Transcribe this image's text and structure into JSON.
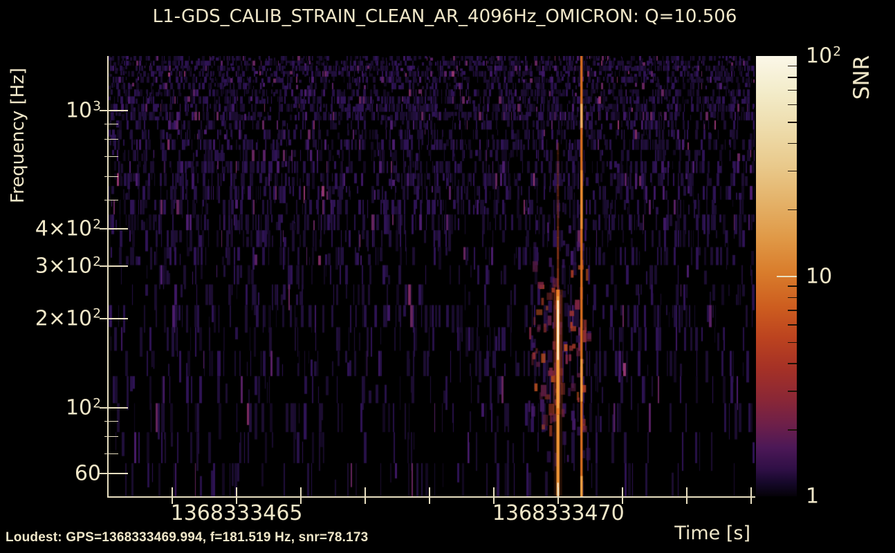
{
  "figure": {
    "title": "L1-GDS_CALIB_STRAIN_CLEAN_AR_4096Hz_OMICRON: Q=10.506",
    "footer_note": "Loudest: GPS=1368333469.994, f=181.519 Hz, snr=78.173"
  },
  "style": {
    "background": "#000000",
    "text": "#f0e7c9",
    "axis": "#e9e0c1",
    "colorbar_minor_tick": "#1c1207"
  },
  "chart_data": {
    "type": "heatmap",
    "title": "L1-GDS_CALIB_STRAIN_CLEAN_AR_4096Hz_OMICRON: Q=10.506",
    "xlabel": "Time [s]",
    "ylabel": "Frequency [Hz]",
    "x_axis": {
      "scale": "linear",
      "range_gps": [
        1368333463.0,
        1368333473.05
      ],
      "major_ticks": [
        {
          "value": 1368333465,
          "label": "1368333465"
        },
        {
          "value": 1368333470,
          "label": "1368333470"
        }
      ],
      "minor_ticks": [
        1368333464,
        1368333465,
        1368333466,
        1368333467,
        1368333468,
        1368333469,
        1368333470,
        1368333471,
        1368333472,
        1368333473
      ]
    },
    "y_axis": {
      "scale": "log",
      "range_hz": [
        50.4,
        1527
      ],
      "major_ticks": [
        {
          "value": 1000,
          "base": "10",
          "exp": "3"
        },
        {
          "value": 400,
          "base": "4×10",
          "exp": "2"
        },
        {
          "value": 300,
          "base": "3×10",
          "exp": "2"
        },
        {
          "value": 200,
          "base": "2×10",
          "exp": "2"
        },
        {
          "value": 100,
          "base": "10",
          "exp": "2"
        },
        {
          "value": 60,
          "base": "60"
        }
      ],
      "minor_ticks": [
        900,
        800,
        700,
        600,
        500,
        90,
        80,
        70
      ]
    },
    "colorbar": {
      "label": "SNR",
      "scale": "log",
      "range": [
        1,
        100
      ],
      "major_ticks": [
        {
          "value": 100,
          "base": "10",
          "exp": "2"
        },
        {
          "value": 10,
          "base": "10"
        },
        {
          "value": 1,
          "base": "1"
        }
      ],
      "minor_ticks": [
        90,
        80,
        70,
        60,
        50,
        40,
        30,
        20,
        9,
        8,
        7,
        6,
        5,
        4,
        3,
        2
      ],
      "gradient_top_to_bottom": [
        [
          "#fbf7e8",
          0.0
        ],
        [
          "#f3ecca",
          0.08
        ],
        [
          "#eeddad",
          0.16
        ],
        [
          "#e9c98b",
          0.25
        ],
        [
          "#e4b269",
          0.33
        ],
        [
          "#e09a48",
          0.41
        ],
        [
          "#d97d2c",
          0.49
        ],
        [
          "#cd5d1f",
          0.57
        ],
        [
          "#bc431f",
          0.64
        ],
        [
          "#a53126",
          0.71
        ],
        [
          "#8a2736",
          0.78
        ],
        [
          "#6c1f4a",
          0.84
        ],
        [
          "#4c1857",
          0.89
        ],
        [
          "#2e0f45",
          0.94
        ],
        [
          "#150829",
          0.97
        ],
        [
          "#050208",
          1.0
        ]
      ]
    },
    "loudest": {
      "gps": 1368333469.994,
      "f_hz": 181.519,
      "snr": 78.173
    },
    "events": {
      "loudest_line": {
        "gps": 1368333469.994,
        "f_range": [
          50.4,
          780
        ],
        "upper_color": "#94381a",
        "bright": {
          "f": [
            95,
            250
          ],
          "color": "#e87c28",
          "inner_color": "#f4a244"
        },
        "strand_color": "#8c2c20",
        "white_core": {
          "f": [
            145,
            230
          ],
          "color": "#fdf2d4",
          "hot_color": "#fffdf4"
        },
        "lower_bright": {
          "f": [
            50.4,
            95
          ],
          "color": "#ef9536"
        },
        "bottom_white": {
          "f": [
            50.4,
            56
          ],
          "color": "#fff7e0"
        },
        "halo_color": "#a84418"
      },
      "secondary_line": {
        "gps": 1368333470.36,
        "f_range": [
          50.4,
          1527
        ],
        "color": "#d66d1e",
        "bright_segments": [
          {
            "f": [
              875,
              1054
            ],
            "color": "#f2b060"
          },
          {
            "f": [
              400,
              630
            ],
            "color": "#ea8c30"
          },
          {
            "f": [
              105,
              146
            ],
            "color": "#f09a40"
          },
          {
            "f": [
              50.4,
              59
            ],
            "color": "#f1a246"
          }
        ]
      },
      "blob": {
        "t": [
          1368333469.55,
          1368333470.45
        ],
        "f": [
          85,
          330
        ],
        "warm_count": 70,
        "purple_count": 55,
        "warm_colors": [
          "#5e1d42",
          "#7c2440",
          "#943032",
          "#a83b26",
          "#bc4f1f"
        ],
        "purple_colors": [
          "#2e1350",
          "#3a1760",
          "#471b6a"
        ]
      }
    },
    "noise": {
      "seed": 1337,
      "rows": 30,
      "growth": 1.07,
      "density_top": 0.8,
      "density_bottom": 0.18,
      "palette": [
        "#120821",
        "#190c2e",
        "#200f3b",
        "#271148",
        "#2e1354",
        "#1c0d31"
      ],
      "accents": [
        "#3d1763",
        "#4a1c6b",
        "#571f63",
        "#64245c"
      ],
      "pinks": [
        "#7b2a60",
        "#90356e"
      ]
    }
  }
}
